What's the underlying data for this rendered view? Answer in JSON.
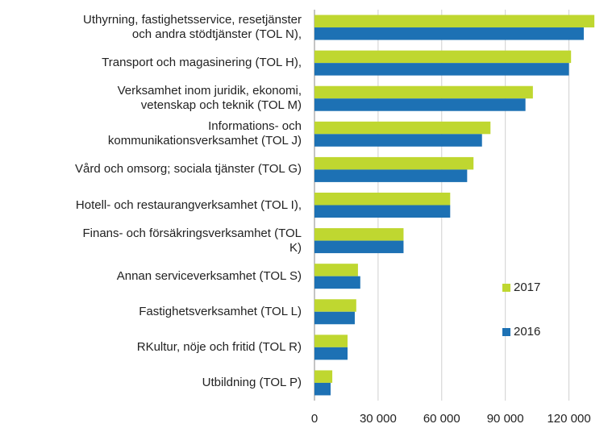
{
  "chart_data": {
    "type": "barh",
    "categories": [
      "Uthyrning, fastighetsservice, resetjänster\noch andra stödtjänster (TOL N),",
      "Transport och magasinering (TOL H),",
      "Verksamhet inom juridik, ekonomi,\nvetenskap och teknik (TOL M)",
      "Informations- och\nkommunikationsverksamhet (TOL J)",
      "Vård och omsorg; sociala tjänster (TOL G)",
      "Hotell- och restaurangverksamhet (TOL I),",
      "Finans- och försäkringsverksamhet (TOL\nK)",
      "Annan serviceverksamhet (TOL S)",
      "Fastighetsverksamhet (TOL L)",
      "RKultur, nöje och fritid (TOL R)",
      "Utbildning (TOL P)"
    ],
    "series": [
      {
        "name": "2017",
        "color": "#bfd730",
        "values": [
          132000,
          121000,
          103000,
          83000,
          75000,
          64000,
          42000,
          20500,
          19700,
          15600,
          8400
        ]
      },
      {
        "name": "2016",
        "color": "#1d71b4",
        "values": [
          127000,
          120000,
          99500,
          79000,
          72000,
          64000,
          42000,
          21600,
          19000,
          15600,
          7600
        ]
      }
    ],
    "xlim": [
      0,
      135000
    ],
    "xticks": [
      0,
      {
        "value": 30000,
        "label": "30 000"
      },
      {
        "value": 60000,
        "label": "60 000"
      },
      {
        "value": 90000,
        "label": "90 000"
      },
      {
        "value": 120000,
        "label": "120 000"
      }
    ],
    "grid": true,
    "legend": "right"
  }
}
